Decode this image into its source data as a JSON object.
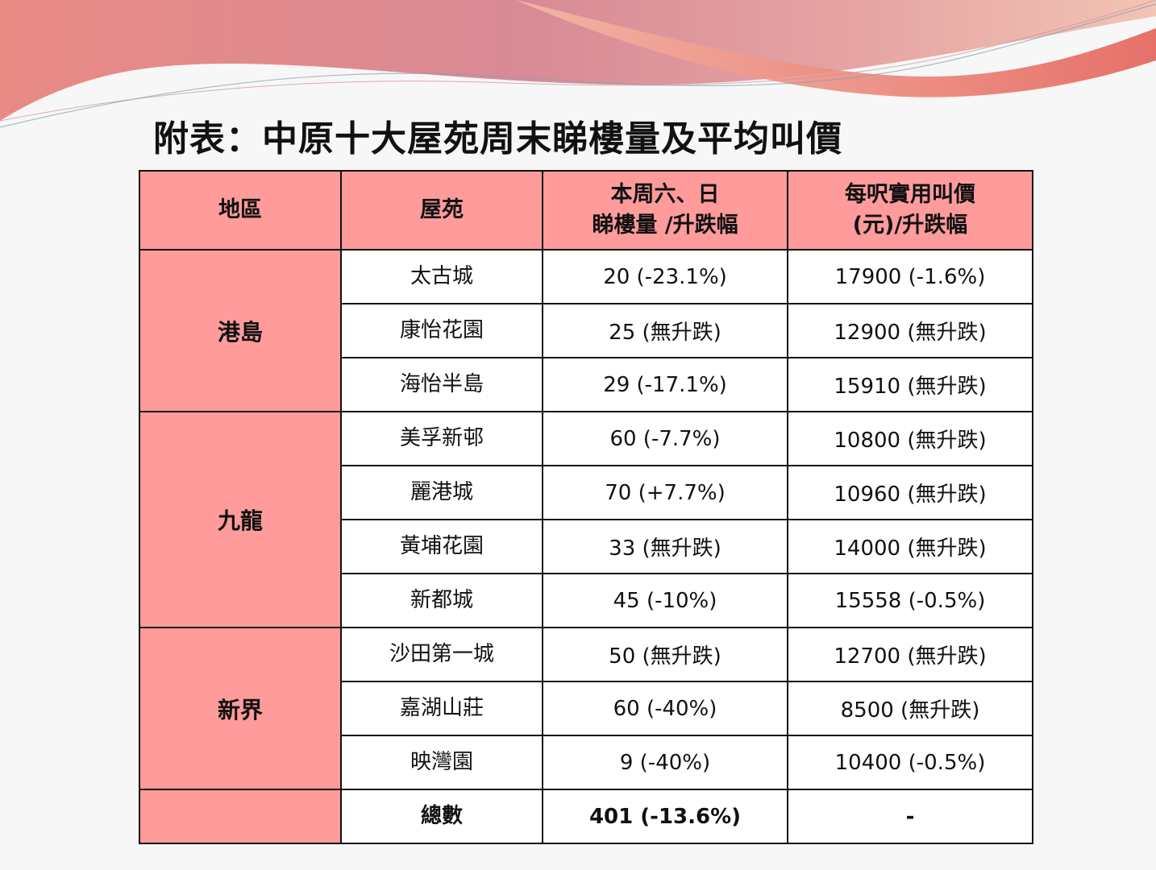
{
  "title": "附表：中原十大屋苑周末睇樓量及平均叫價",
  "table": {
    "headers": {
      "region": "地區",
      "estate": "屋苑",
      "viewings_line1": "本周六、日",
      "viewings_line2": "睇樓量 /升跌幅",
      "price_line1": "每呎實用叫價",
      "price_line2": "(元)/升跌幅"
    },
    "regions": {
      "hk_island": "港島",
      "kowloon": "九龍",
      "new_territories": "新界",
      "total_region": ""
    },
    "rows": [
      {
        "estate": "太古城",
        "viewings": "20 (-23.1%)",
        "price": "17900 (-1.6%)"
      },
      {
        "estate": "康怡花園",
        "viewings": "25 (無升跌)",
        "price": "12900 (無升跌)"
      },
      {
        "estate": "海怡半島",
        "viewings": "29 (-17.1%)",
        "price": "15910 (無升跌)"
      },
      {
        "estate": "美孚新邨",
        "viewings": "60 (-7.7%)",
        "price": "10800 (無升跌)"
      },
      {
        "estate": "麗港城",
        "viewings": "70 (+7.7%)",
        "price": "10960 (無升跌)"
      },
      {
        "estate": "黃埔花園",
        "viewings": "33 (無升跌)",
        "price": "14000 (無升跌)"
      },
      {
        "estate": "新都城",
        "viewings": "45 (-10%)",
        "price": "15558 (-0.5%)"
      },
      {
        "estate": "沙田第一城",
        "viewings": "50 (無升跌)",
        "price": "12700 (無升跌)"
      },
      {
        "estate": "嘉湖山莊",
        "viewings": "60 (-40%)",
        "price": "8500 (無升跌)"
      },
      {
        "estate": "映灣園",
        "viewings": "9 (-40%)",
        "price": "10400 (-0.5%)"
      }
    ],
    "total": {
      "label": "總數",
      "viewings": "401 (-13.6%)",
      "price": "-"
    }
  },
  "colors": {
    "header_fill": "#ff9b9b",
    "region_fill": "#ff9b9b",
    "border": "#111111"
  }
}
